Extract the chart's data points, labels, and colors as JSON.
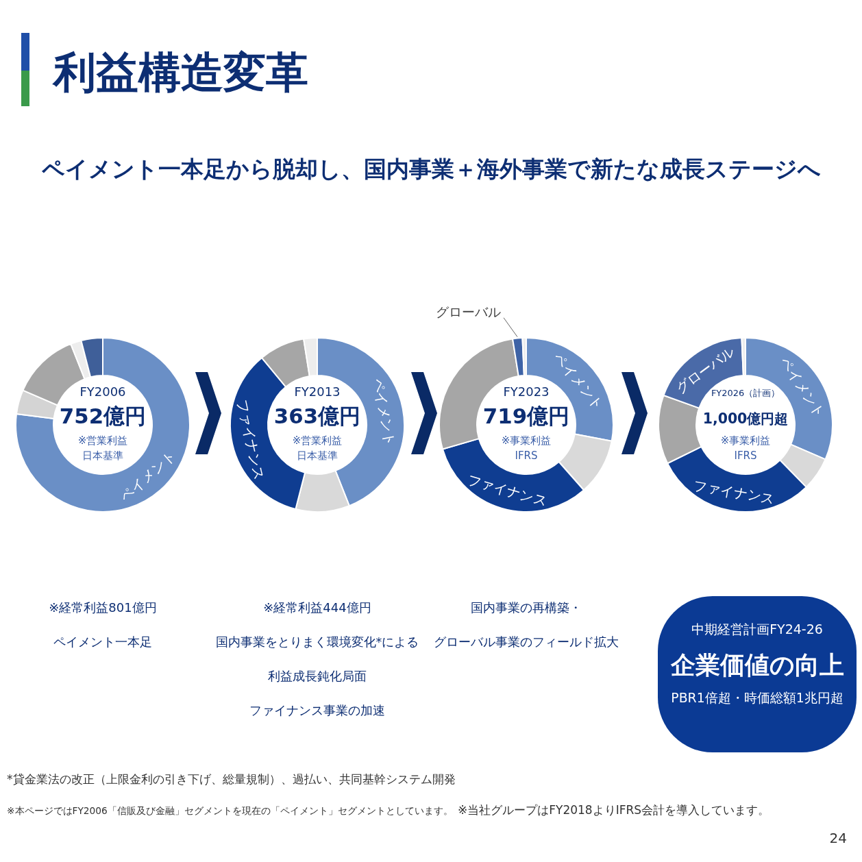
{
  "chart_data": [
    {
      "type": "other",
      "title": "利益構造変革",
      "subtitle": "ペイメント一本足から脱却し、国内事業＋海外事業で新たな成長ステージへ",
      "annotations": [
        "*貸金業法の改正（上限金利の引き下げ、総量規制）、過払い、共同基幹システム開発",
        "※本ページではFY2006「信販及び金融」セグメントを現在の「ペイメント」セグメントとしています。",
        "※当社グループはFY2018よりIFRS会計を導入しています。",
        "24"
      ]
    },
    {
      "type": "donut",
      "title": "FY2006",
      "subtitle": "752億円",
      "categories": [
        "ペイメント",
        null,
        null,
        null,
        null
      ],
      "values": [
        77,
        4.5,
        12.5,
        2,
        4
      ],
      "colors": [
        "#6a8fc6",
        "#d4d4d4",
        "#a6a6a6",
        "#ededed",
        "#3f5f99"
      ],
      "annotations": [
        "※営業利益",
        "日本基準",
        "※経常利益801億円",
        "ペイメント一本足"
      ]
    },
    {
      "type": "donut",
      "title": "FY2013",
      "subtitle": "363億円",
      "categories": [
        "ペイメント",
        null,
        "ファイナンス",
        null,
        null
      ],
      "values": [
        44,
        10,
        35,
        8.5,
        2.5
      ],
      "colors": [
        "#6a8fc6",
        "#d9d9d9",
        "#0f3d91",
        "#a6a6a6",
        "#ededed"
      ],
      "annotations": [
        "※営業利益",
        "日本基準",
        "※経常利益444億円",
        "国内事業をとりまく環境変化*による",
        "利益成長鈍化局面",
        "ファイナンス事業の加速"
      ]
    },
    {
      "type": "donut",
      "title": "FY2023",
      "subtitle": "719億円",
      "categories": [
        "ペイメント",
        null,
        "ファイナンス",
        null,
        "グローバル",
        null
      ],
      "values": [
        28,
        10.5,
        32,
        27,
        1.8,
        0.7
      ],
      "colors": [
        "#6a8fc6",
        "#d9d9d9",
        "#0f3d91",
        "#a6a6a6",
        "#3e63a6",
        "#ededed"
      ],
      "annotations": [
        "※事業利益",
        "IFRS",
        "国内事業の再構築・",
        "グローバル事業のフィールド拡大"
      ]
    },
    {
      "type": "donut",
      "title": "FY2026（計画）",
      "subtitle": "1,000億円超",
      "categories": [
        "ペイメント",
        null,
        "ファイナンス",
        null,
        "グローバル",
        null
      ],
      "values": [
        31.5,
        6.2,
        30,
        12.8,
        18.8,
        0.7
      ],
      "colors": [
        "#6a8fc6",
        "#d9d9d9",
        "#0f3d91",
        "#a6a6a6",
        "#4a6aa8",
        "#ededed"
      ],
      "annotations": [
        "※事業利益",
        "IFRS",
        "中期経営計画FY24-26",
        "企業価値の向上",
        "PBR1倍超・時価総額1兆円超"
      ]
    }
  ]
}
